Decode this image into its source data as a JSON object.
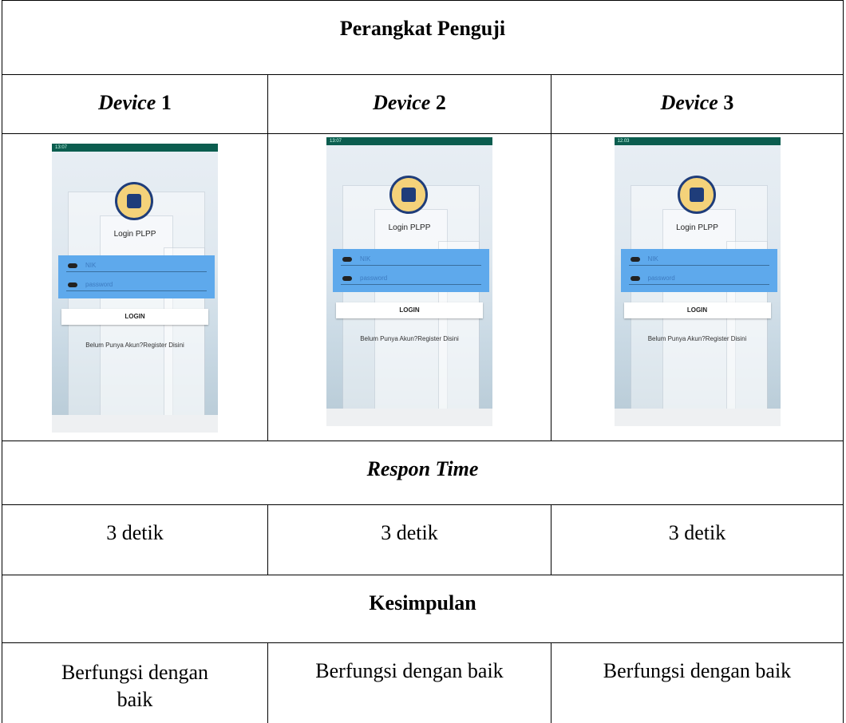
{
  "table": {
    "title": "Perangkat Penguji",
    "devices": [
      {
        "label": "Device",
        "number": "1",
        "screen": {
          "status_time": "13:07",
          "app_title": "Login PLPP",
          "nik_placeholder": "NIK",
          "password_placeholder": "password",
          "login_button": "LOGIN",
          "register_link": "Belum Punya Akun?Register Disini"
        }
      },
      {
        "label": "Device",
        "number": "2",
        "screen": {
          "status_time": "13:07",
          "app_title": "Login PLPP",
          "nik_placeholder": "NIK",
          "password_placeholder": "password",
          "login_button": "LOGIN",
          "register_link": "Belum Punya Akun?Register Disini"
        }
      },
      {
        "label": "Device",
        "number": "3",
        "screen": {
          "status_time": "12.03",
          "app_title": "Login PLPP",
          "nik_placeholder": "NIK",
          "password_placeholder": "password",
          "login_button": "LOGIN",
          "register_link": "Belum Punya Akun?Register Disini"
        }
      }
    ],
    "response_heading": "Respon Time",
    "response_times": [
      "3 detik",
      "3 detik",
      "3 detik"
    ],
    "conclusion_heading": "Kesimpulan",
    "conclusions": [
      "Berfungsi dengan baik",
      "Berfungsi dengan baik",
      "Berfungsi dengan baik"
    ]
  }
}
